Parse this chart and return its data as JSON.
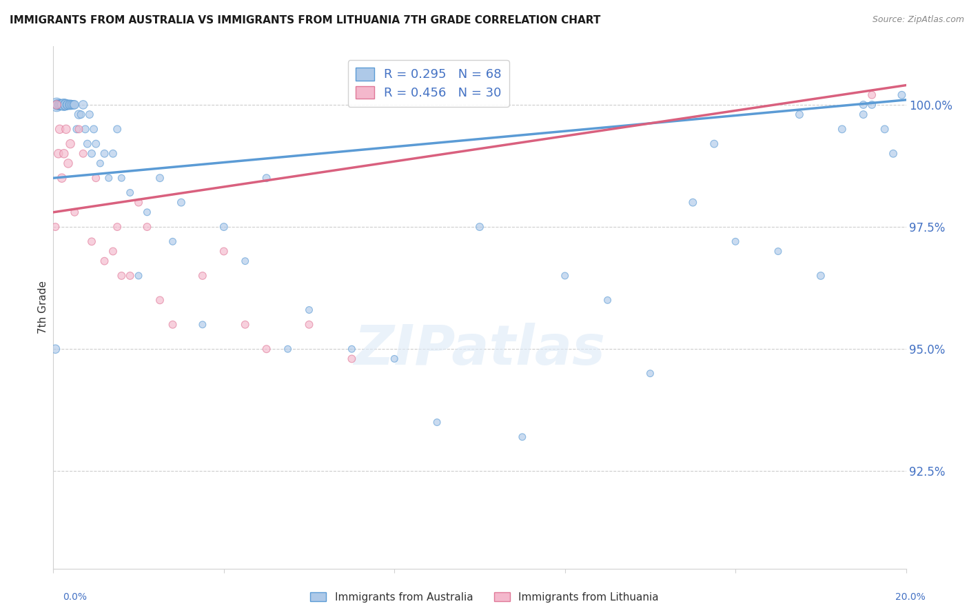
{
  "title": "IMMIGRANTS FROM AUSTRALIA VS IMMIGRANTS FROM LITHUANIA 7TH GRADE CORRELATION CHART",
  "source": "Source: ZipAtlas.com",
  "ylabel": "7th Grade",
  "xlim": [
    0.0,
    20.0
  ],
  "ylim": [
    90.5,
    101.2
  ],
  "yticks": [
    92.5,
    95.0,
    97.5,
    100.0
  ],
  "ytick_labels": [
    "92.5%",
    "95.0%",
    "97.5%",
    "100.0%"
  ],
  "australia_R": 0.295,
  "australia_N": 68,
  "lithuania_R": 0.456,
  "lithuania_N": 30,
  "australia_color": "#aec9e8",
  "australia_edge_color": "#5b9bd5",
  "lithuania_color": "#f4b8cc",
  "lithuania_edge_color": "#e07898",
  "australia_line_color": "#5b9bd5",
  "lithuania_line_color": "#d9607e",
  "background_color": "#ffffff",
  "watermark": "ZIPatlas",
  "aus_x": [
    0.05,
    0.08,
    0.1,
    0.12,
    0.15,
    0.18,
    0.2,
    0.22,
    0.25,
    0.28,
    0.3,
    0.32,
    0.35,
    0.38,
    0.4,
    0.42,
    0.45,
    0.48,
    0.5,
    0.55,
    0.6,
    0.65,
    0.7,
    0.75,
    0.8,
    0.85,
    0.9,
    0.95,
    1.0,
    1.1,
    1.2,
    1.3,
    1.4,
    1.5,
    1.6,
    1.8,
    2.0,
    2.2,
    2.5,
    2.8,
    3.0,
    3.5,
    4.0,
    4.5,
    5.0,
    5.5,
    6.0,
    7.0,
    8.0,
    9.0,
    10.0,
    11.0,
    12.0,
    13.0,
    14.0,
    15.0,
    16.0,
    17.0,
    18.0,
    18.5,
    19.0,
    19.2,
    19.5,
    19.7,
    15.5,
    17.5,
    19.0,
    19.9
  ],
  "aus_y": [
    95.0,
    100.0,
    100.0,
    100.0,
    100.0,
    100.0,
    100.0,
    100.0,
    100.0,
    100.0,
    100.0,
    100.0,
    100.0,
    100.0,
    100.0,
    100.0,
    100.0,
    100.0,
    100.0,
    99.5,
    99.8,
    99.8,
    100.0,
    99.5,
    99.2,
    99.8,
    99.0,
    99.5,
    99.2,
    98.8,
    99.0,
    98.5,
    99.0,
    99.5,
    98.5,
    98.2,
    96.5,
    97.8,
    98.5,
    97.2,
    98.0,
    95.5,
    97.5,
    96.8,
    98.5,
    95.0,
    95.8,
    95.0,
    94.8,
    93.5,
    97.5,
    93.2,
    96.5,
    96.0,
    94.5,
    98.0,
    97.2,
    97.0,
    96.5,
    99.5,
    99.8,
    100.0,
    99.5,
    99.0,
    99.2,
    99.8,
    100.0,
    100.2
  ],
  "aus_s": [
    80,
    200,
    120,
    80,
    100,
    120,
    120,
    120,
    150,
    120,
    120,
    80,
    100,
    80,
    100,
    80,
    80,
    80,
    80,
    60,
    80,
    60,
    80,
    60,
    60,
    60,
    60,
    60,
    60,
    50,
    60,
    50,
    60,
    60,
    50,
    50,
    50,
    50,
    60,
    50,
    60,
    50,
    60,
    50,
    60,
    50,
    50,
    50,
    50,
    50,
    60,
    50,
    50,
    50,
    50,
    60,
    50,
    50,
    60,
    60,
    60,
    60,
    60,
    60,
    60,
    60,
    60,
    60
  ],
  "lit_x": [
    0.05,
    0.08,
    0.12,
    0.15,
    0.2,
    0.25,
    0.3,
    0.35,
    0.4,
    0.5,
    0.7,
    0.9,
    1.0,
    1.2,
    1.5,
    1.8,
    2.0,
    2.2,
    2.5,
    2.8,
    3.5,
    4.0,
    4.5,
    5.0,
    6.0,
    7.0,
    1.4,
    1.6,
    0.6,
    19.2
  ],
  "lit_y": [
    97.5,
    100.0,
    99.0,
    99.5,
    98.5,
    99.0,
    99.5,
    98.8,
    99.2,
    97.8,
    99.0,
    97.2,
    98.5,
    96.8,
    97.5,
    96.5,
    98.0,
    97.5,
    96.0,
    95.5,
    96.5,
    97.0,
    95.5,
    95.0,
    95.5,
    94.8,
    97.0,
    96.5,
    99.5,
    100.2
  ],
  "lit_s": [
    60,
    80,
    80,
    80,
    80,
    80,
    80,
    80,
    80,
    60,
    60,
    60,
    60,
    60,
    60,
    60,
    60,
    60,
    60,
    60,
    60,
    60,
    60,
    60,
    60,
    60,
    60,
    60,
    60,
    60
  ],
  "aus_line_x0": 0.0,
  "aus_line_y0": 98.5,
  "aus_line_x1": 20.0,
  "aus_line_y1": 100.1,
  "lit_line_x0": 0.0,
  "lit_line_y0": 97.8,
  "lit_line_x1": 20.0,
  "lit_line_y1": 100.4
}
